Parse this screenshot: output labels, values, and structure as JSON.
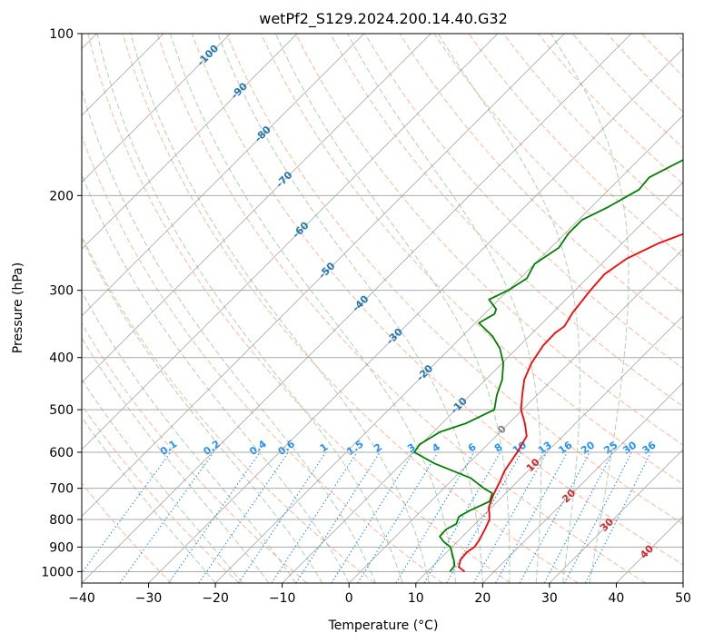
{
  "chart_data": {
    "type": "line",
    "title": "wetPf2_S129.2024.200.14.40.G32",
    "xlabel": "Temperature (°C)",
    "ylabel": "Pressure (hPa)",
    "xlim": [
      -40,
      50
    ],
    "ylim": [
      1050,
      100
    ],
    "y_scale": "log",
    "grid": true,
    "x_ticks": [
      -40,
      -30,
      -20,
      -10,
      0,
      10,
      20,
      30,
      40,
      50
    ],
    "y_ticks": [
      1000,
      900,
      800,
      700,
      600,
      500,
      400,
      300,
      200,
      100
    ],
    "colors": {
      "temperature": "#ff0000",
      "dewpoint": "#008000",
      "dry_adiabat": "#ffa07a",
      "moist_adiabat": "#8fbc8f",
      "mixing_ratio": "#1e90ff",
      "isotherm": "#808080",
      "isotherm_label": "#1f77b4",
      "mixing_label": "#1e90ff",
      "warm_label": "#d62728"
    },
    "series": [
      {
        "key": "temperature",
        "points": [
          [
            15.6,
            1000
          ],
          [
            14.0,
            980
          ],
          [
            13.2,
            950
          ],
          [
            13.0,
            920
          ],
          [
            13.4,
            900
          ],
          [
            13.0,
            870
          ],
          [
            12.2,
            830
          ],
          [
            11.5,
            800
          ],
          [
            10.6,
            780
          ],
          [
            9.6,
            760
          ],
          [
            8.4,
            720
          ],
          [
            7.4,
            680
          ],
          [
            6.5,
            650
          ],
          [
            5.6,
            600
          ],
          [
            4.6,
            560
          ],
          [
            2.4,
            530
          ],
          [
            -0.2,
            500
          ],
          [
            -2.2,
            470
          ],
          [
            -4.2,
            440
          ],
          [
            -5.6,
            410
          ],
          [
            -6.5,
            380
          ],
          [
            -6.6,
            360
          ],
          [
            -6.2,
            350
          ],
          [
            -7.0,
            330
          ],
          [
            -7.7,
            300
          ],
          [
            -8.0,
            280
          ],
          [
            -7.0,
            262
          ],
          [
            -4.5,
            245
          ],
          [
            0.5,
            225
          ],
          [
            7.0,
            205
          ],
          [
            10.5,
            190
          ],
          [
            14.0,
            170
          ],
          [
            17.5,
            155
          ],
          [
            22.5,
            138
          ],
          [
            25.0,
            128
          ],
          [
            26.5,
            122
          ],
          [
            28.0,
            117
          ],
          [
            29.2,
            110
          ],
          [
            29.5,
            104
          ],
          [
            30.0,
            100
          ]
        ]
      },
      {
        "key": "dewpoint",
        "points": [
          [
            13.4,
            1000
          ],
          [
            13.2,
            975
          ],
          [
            12.4,
            955
          ],
          [
            11.0,
            925
          ],
          [
            9.8,
            900
          ],
          [
            8.0,
            880
          ],
          [
            6.6,
            860
          ],
          [
            6.5,
            835
          ],
          [
            7.2,
            815
          ],
          [
            6.5,
            790
          ],
          [
            7.2,
            770
          ],
          [
            8.3,
            750
          ],
          [
            8.8,
            740
          ],
          [
            8.0,
            715
          ],
          [
            6.0,
            700
          ],
          [
            2.5,
            670
          ],
          [
            -5.0,
            630
          ],
          [
            -9.8,
            600
          ],
          [
            -10.2,
            580
          ],
          [
            -9.0,
            550
          ],
          [
            -6.4,
            530
          ],
          [
            -4.2,
            500
          ],
          [
            -6.0,
            470
          ],
          [
            -7.5,
            440
          ],
          [
            -9.8,
            410
          ],
          [
            -12.5,
            385
          ],
          [
            -15.5,
            365
          ],
          [
            -19.5,
            345
          ],
          [
            -18.5,
            332
          ],
          [
            -19.0,
            325
          ],
          [
            -21.5,
            312
          ],
          [
            -20.0,
            300
          ],
          [
            -19.0,
            285
          ],
          [
            -20.0,
            268
          ],
          [
            -18.8,
            250
          ],
          [
            -19.5,
            235
          ],
          [
            -19.5,
            222
          ],
          [
            -17.5,
            210
          ],
          [
            -15.5,
            195
          ],
          [
            -15.8,
            185
          ],
          [
            -13.0,
            170
          ],
          [
            -10.8,
            160
          ],
          [
            -6.5,
            150
          ],
          [
            -4.5,
            140
          ],
          [
            -4.8,
            130
          ],
          [
            -5.5,
            120
          ],
          [
            -6.0,
            115
          ],
          [
            -5.0,
            110
          ],
          [
            -1.0,
            104
          ],
          [
            0.0,
            100
          ]
        ]
      }
    ],
    "isotherm_labels": [
      {
        "text": "-100",
        "t": -100,
        "p": 110
      },
      {
        "text": "-90",
        "t": -90,
        "p": 128
      },
      {
        "text": "-80",
        "t": -80,
        "p": 154
      },
      {
        "text": "-70",
        "t": -70,
        "p": 187
      },
      {
        "text": "-60",
        "t": -60,
        "p": 232
      },
      {
        "text": "-50",
        "t": -50,
        "p": 276
      },
      {
        "text": "-40",
        "t": -40,
        "p": 318
      },
      {
        "text": "-30",
        "t": -30,
        "p": 366
      },
      {
        "text": "-20",
        "t": -20,
        "p": 428
      },
      {
        "text": "-10",
        "t": -10,
        "p": 492
      },
      {
        "text": "0",
        "t": 0,
        "p": 545
      },
      {
        "text": "10",
        "t": 10,
        "p": 635
      },
      {
        "text": "20",
        "t": 20,
        "p": 725
      },
      {
        "text": "30",
        "t": 30,
        "p": 820
      },
      {
        "text": "40",
        "t": 40,
        "p": 920
      }
    ],
    "mixing_labels": [
      "0.1",
      "0.2",
      "0.4",
      "0.6",
      "1",
      "1.5",
      "2",
      "3",
      "4",
      "6",
      "8",
      "10",
      "13",
      "16",
      "20",
      "25",
      "30",
      "36"
    ]
  }
}
